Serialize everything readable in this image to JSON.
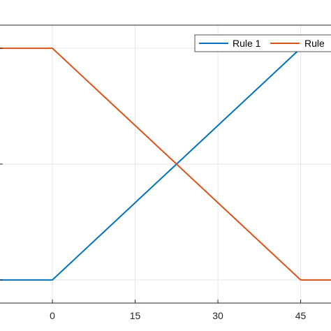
{
  "chart_data": {
    "type": "line",
    "title": "",
    "xlabel": "",
    "ylabel": "",
    "x_ticks": [
      "0",
      "15",
      "30",
      "45"
    ],
    "xlim": [
      -9.5,
      50.5
    ],
    "ylim": [
      -0.1,
      1.1
    ],
    "grid": true,
    "legend_position": "top-right",
    "series": [
      {
        "name": "Rule 1",
        "color": "#0072BD",
        "x": [
          -9.5,
          0,
          45,
          50.5
        ],
        "y": [
          0,
          0,
          1,
          1
        ]
      },
      {
        "name": "Rule",
        "color": "#D95319",
        "x": [
          -9.5,
          0,
          45,
          50.5
        ],
        "y": [
          1,
          1,
          0,
          0
        ]
      }
    ]
  }
}
